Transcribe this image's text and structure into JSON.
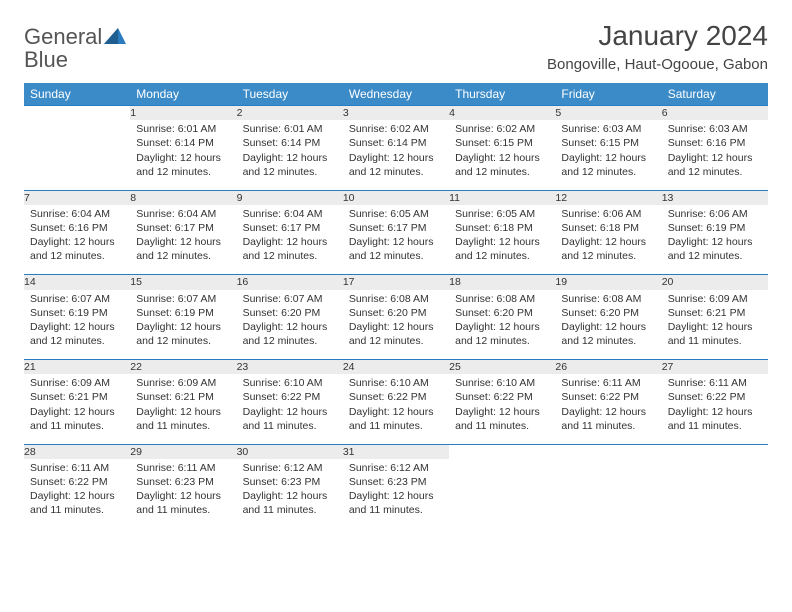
{
  "brand": {
    "word1": "General",
    "word2": "Blue"
  },
  "title": "January 2024",
  "location": "Bongoville, Haut-Ogooue, Gabon",
  "colors": {
    "header_bg": "#3b8bc9",
    "header_text": "#ffffff",
    "daynum_bg": "#ececec",
    "rule": "#2b7bbf",
    "brand_blue": "#2b7bbf"
  },
  "weekdays": [
    "Sunday",
    "Monday",
    "Tuesday",
    "Wednesday",
    "Thursday",
    "Friday",
    "Saturday"
  ],
  "weeks": [
    [
      null,
      {
        "n": "1",
        "sr": "Sunrise: 6:01 AM",
        "ss": "Sunset: 6:14 PM",
        "d1": "Daylight: 12 hours",
        "d2": "and 12 minutes."
      },
      {
        "n": "2",
        "sr": "Sunrise: 6:01 AM",
        "ss": "Sunset: 6:14 PM",
        "d1": "Daylight: 12 hours",
        "d2": "and 12 minutes."
      },
      {
        "n": "3",
        "sr": "Sunrise: 6:02 AM",
        "ss": "Sunset: 6:14 PM",
        "d1": "Daylight: 12 hours",
        "d2": "and 12 minutes."
      },
      {
        "n": "4",
        "sr": "Sunrise: 6:02 AM",
        "ss": "Sunset: 6:15 PM",
        "d1": "Daylight: 12 hours",
        "d2": "and 12 minutes."
      },
      {
        "n": "5",
        "sr": "Sunrise: 6:03 AM",
        "ss": "Sunset: 6:15 PM",
        "d1": "Daylight: 12 hours",
        "d2": "and 12 minutes."
      },
      {
        "n": "6",
        "sr": "Sunrise: 6:03 AM",
        "ss": "Sunset: 6:16 PM",
        "d1": "Daylight: 12 hours",
        "d2": "and 12 minutes."
      }
    ],
    [
      {
        "n": "7",
        "sr": "Sunrise: 6:04 AM",
        "ss": "Sunset: 6:16 PM",
        "d1": "Daylight: 12 hours",
        "d2": "and 12 minutes."
      },
      {
        "n": "8",
        "sr": "Sunrise: 6:04 AM",
        "ss": "Sunset: 6:17 PM",
        "d1": "Daylight: 12 hours",
        "d2": "and 12 minutes."
      },
      {
        "n": "9",
        "sr": "Sunrise: 6:04 AM",
        "ss": "Sunset: 6:17 PM",
        "d1": "Daylight: 12 hours",
        "d2": "and 12 minutes."
      },
      {
        "n": "10",
        "sr": "Sunrise: 6:05 AM",
        "ss": "Sunset: 6:17 PM",
        "d1": "Daylight: 12 hours",
        "d2": "and 12 minutes."
      },
      {
        "n": "11",
        "sr": "Sunrise: 6:05 AM",
        "ss": "Sunset: 6:18 PM",
        "d1": "Daylight: 12 hours",
        "d2": "and 12 minutes."
      },
      {
        "n": "12",
        "sr": "Sunrise: 6:06 AM",
        "ss": "Sunset: 6:18 PM",
        "d1": "Daylight: 12 hours",
        "d2": "and 12 minutes."
      },
      {
        "n": "13",
        "sr": "Sunrise: 6:06 AM",
        "ss": "Sunset: 6:19 PM",
        "d1": "Daylight: 12 hours",
        "d2": "and 12 minutes."
      }
    ],
    [
      {
        "n": "14",
        "sr": "Sunrise: 6:07 AM",
        "ss": "Sunset: 6:19 PM",
        "d1": "Daylight: 12 hours",
        "d2": "and 12 minutes."
      },
      {
        "n": "15",
        "sr": "Sunrise: 6:07 AM",
        "ss": "Sunset: 6:19 PM",
        "d1": "Daylight: 12 hours",
        "d2": "and 12 minutes."
      },
      {
        "n": "16",
        "sr": "Sunrise: 6:07 AM",
        "ss": "Sunset: 6:20 PM",
        "d1": "Daylight: 12 hours",
        "d2": "and 12 minutes."
      },
      {
        "n": "17",
        "sr": "Sunrise: 6:08 AM",
        "ss": "Sunset: 6:20 PM",
        "d1": "Daylight: 12 hours",
        "d2": "and 12 minutes."
      },
      {
        "n": "18",
        "sr": "Sunrise: 6:08 AM",
        "ss": "Sunset: 6:20 PM",
        "d1": "Daylight: 12 hours",
        "d2": "and 12 minutes."
      },
      {
        "n": "19",
        "sr": "Sunrise: 6:08 AM",
        "ss": "Sunset: 6:20 PM",
        "d1": "Daylight: 12 hours",
        "d2": "and 12 minutes."
      },
      {
        "n": "20",
        "sr": "Sunrise: 6:09 AM",
        "ss": "Sunset: 6:21 PM",
        "d1": "Daylight: 12 hours",
        "d2": "and 11 minutes."
      }
    ],
    [
      {
        "n": "21",
        "sr": "Sunrise: 6:09 AM",
        "ss": "Sunset: 6:21 PM",
        "d1": "Daylight: 12 hours",
        "d2": "and 11 minutes."
      },
      {
        "n": "22",
        "sr": "Sunrise: 6:09 AM",
        "ss": "Sunset: 6:21 PM",
        "d1": "Daylight: 12 hours",
        "d2": "and 11 minutes."
      },
      {
        "n": "23",
        "sr": "Sunrise: 6:10 AM",
        "ss": "Sunset: 6:22 PM",
        "d1": "Daylight: 12 hours",
        "d2": "and 11 minutes."
      },
      {
        "n": "24",
        "sr": "Sunrise: 6:10 AM",
        "ss": "Sunset: 6:22 PM",
        "d1": "Daylight: 12 hours",
        "d2": "and 11 minutes."
      },
      {
        "n": "25",
        "sr": "Sunrise: 6:10 AM",
        "ss": "Sunset: 6:22 PM",
        "d1": "Daylight: 12 hours",
        "d2": "and 11 minutes."
      },
      {
        "n": "26",
        "sr": "Sunrise: 6:11 AM",
        "ss": "Sunset: 6:22 PM",
        "d1": "Daylight: 12 hours",
        "d2": "and 11 minutes."
      },
      {
        "n": "27",
        "sr": "Sunrise: 6:11 AM",
        "ss": "Sunset: 6:22 PM",
        "d1": "Daylight: 12 hours",
        "d2": "and 11 minutes."
      }
    ],
    [
      {
        "n": "28",
        "sr": "Sunrise: 6:11 AM",
        "ss": "Sunset: 6:22 PM",
        "d1": "Daylight: 12 hours",
        "d2": "and 11 minutes."
      },
      {
        "n": "29",
        "sr": "Sunrise: 6:11 AM",
        "ss": "Sunset: 6:23 PM",
        "d1": "Daylight: 12 hours",
        "d2": "and 11 minutes."
      },
      {
        "n": "30",
        "sr": "Sunrise: 6:12 AM",
        "ss": "Sunset: 6:23 PM",
        "d1": "Daylight: 12 hours",
        "d2": "and 11 minutes."
      },
      {
        "n": "31",
        "sr": "Sunrise: 6:12 AM",
        "ss": "Sunset: 6:23 PM",
        "d1": "Daylight: 12 hours",
        "d2": "and 11 minutes."
      },
      null,
      null,
      null
    ]
  ]
}
